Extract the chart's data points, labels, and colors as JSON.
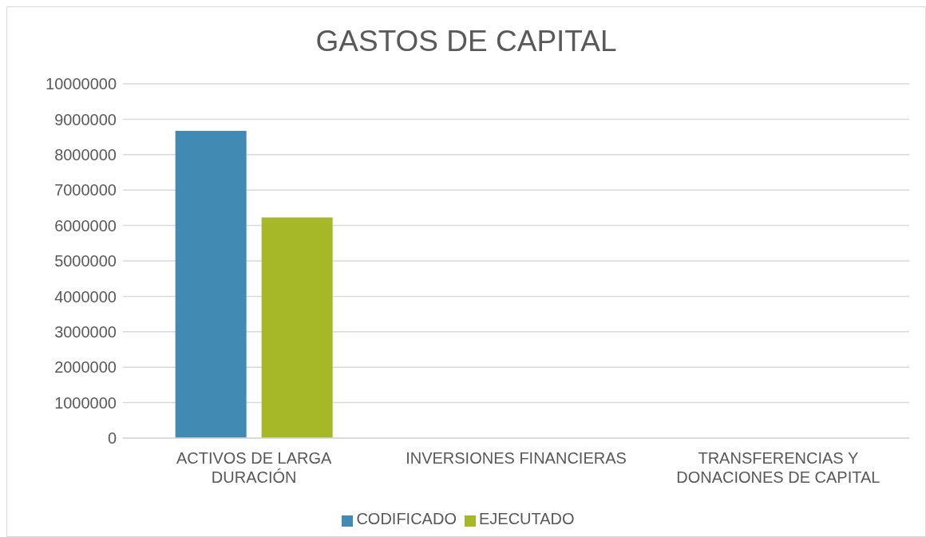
{
  "chart_data": {
    "type": "bar",
    "title": "GASTOS DE CAPITAL",
    "categories": [
      "ACTIVOS DE LARGA DURACIÓN",
      "INVERSIONES FINANCIERAS",
      "TRANSFERENCIAS Y DONACIONES DE CAPITAL"
    ],
    "series": [
      {
        "name": "CODIFICADO",
        "color": "#418ab3",
        "values": [
          8670000,
          0,
          0
        ]
      },
      {
        "name": "EJECUTADO",
        "color": "#a6b727",
        "values": [
          6230000,
          0,
          0
        ]
      }
    ],
    "ylim": [
      0,
      10000000
    ],
    "yticks": [
      0,
      1000000,
      2000000,
      3000000,
      4000000,
      5000000,
      6000000,
      7000000,
      8000000,
      9000000,
      10000000
    ],
    "grid": "y",
    "legend": "bottom"
  }
}
